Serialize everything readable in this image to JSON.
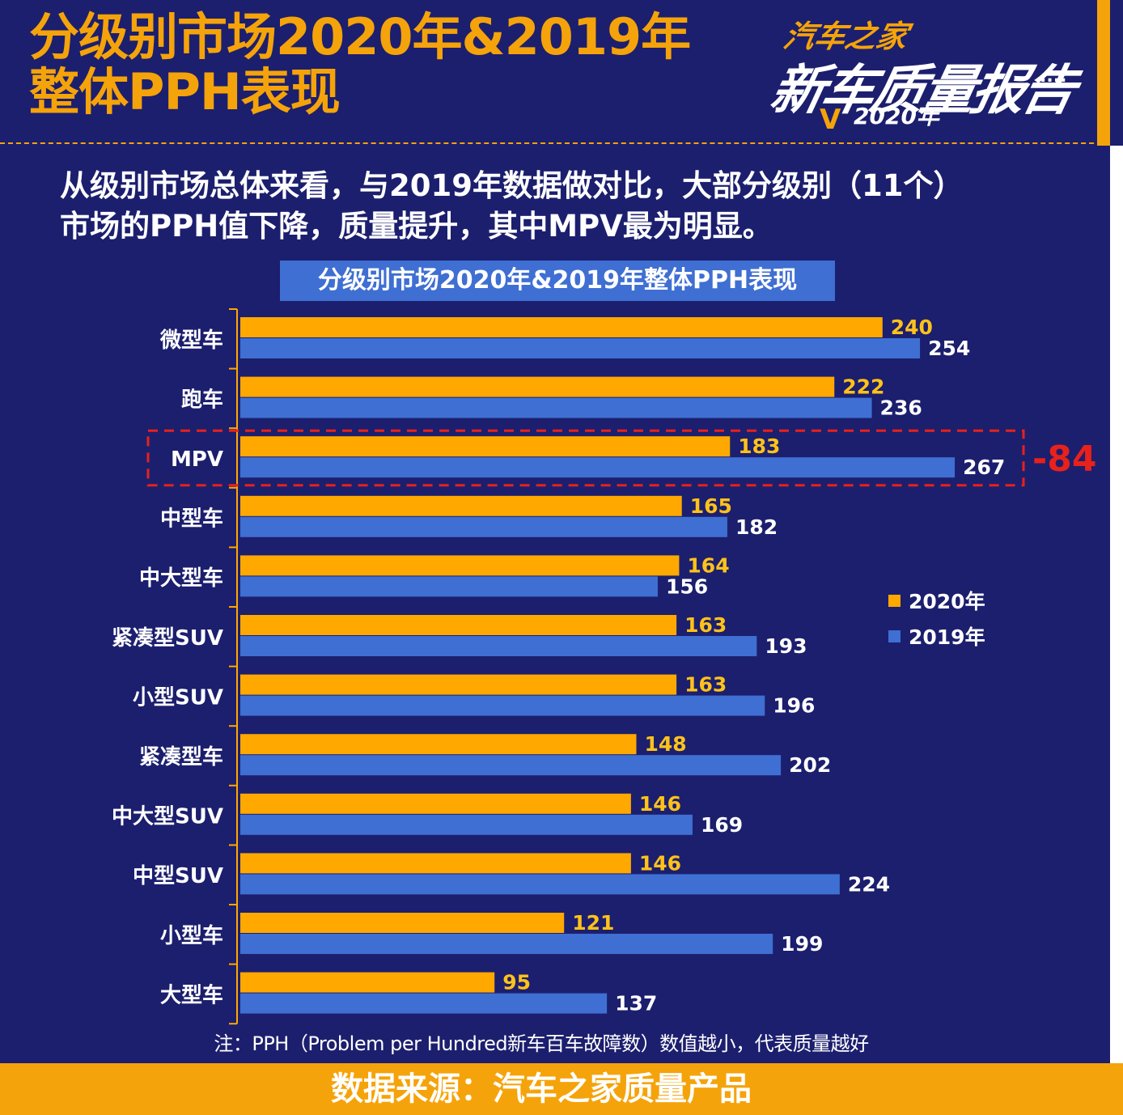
{
  "header": {
    "title_line1": "分级别市场2020年&2019年",
    "title_line2": "整体PPH表现",
    "accent_color": "#f5a30a"
  },
  "logo": {
    "brand": "汽车之家",
    "report_name": "新车质量报告",
    "year": "2020年"
  },
  "subtitle": {
    "line1": "从级别市场总体来看，与2019年数据做对比，大部分级别（11个）",
    "line2": "市场的PPH值下降，质量提升，其中MPV最为明显。"
  },
  "chart_data": {
    "type": "bar",
    "orientation": "horizontal",
    "title": "分级别市场2020年&2019年整体PPH表现",
    "categories": [
      "微型车",
      "跑车",
      "MPV",
      "中型车",
      "中大型车",
      "紧凑型SUV",
      "小型SUV",
      "紧凑型车",
      "中大型SUV",
      "中型SUV",
      "小型车",
      "大型车"
    ],
    "series": [
      {
        "name": "2020年",
        "color": "#ffa800",
        "values": [
          240,
          222,
          183,
          165,
          164,
          163,
          163,
          148,
          146,
          146,
          121,
          95
        ]
      },
      {
        "name": "2019年",
        "color": "#3f6fd2",
        "values": [
          254,
          236,
          267,
          182,
          156,
          193,
          196,
          202,
          169,
          224,
          199,
          137
        ]
      }
    ],
    "xlim": [
      0,
      270
    ],
    "grid": false,
    "legend_position": "right",
    "highlight": {
      "category": "MPV",
      "label": "-84",
      "color": "#e8211b"
    }
  },
  "note": "注：PPH（Problem per Hundred新车百车故障数）数值越小，代表质量越好",
  "footer": "数据来源：汽车之家质量产品"
}
